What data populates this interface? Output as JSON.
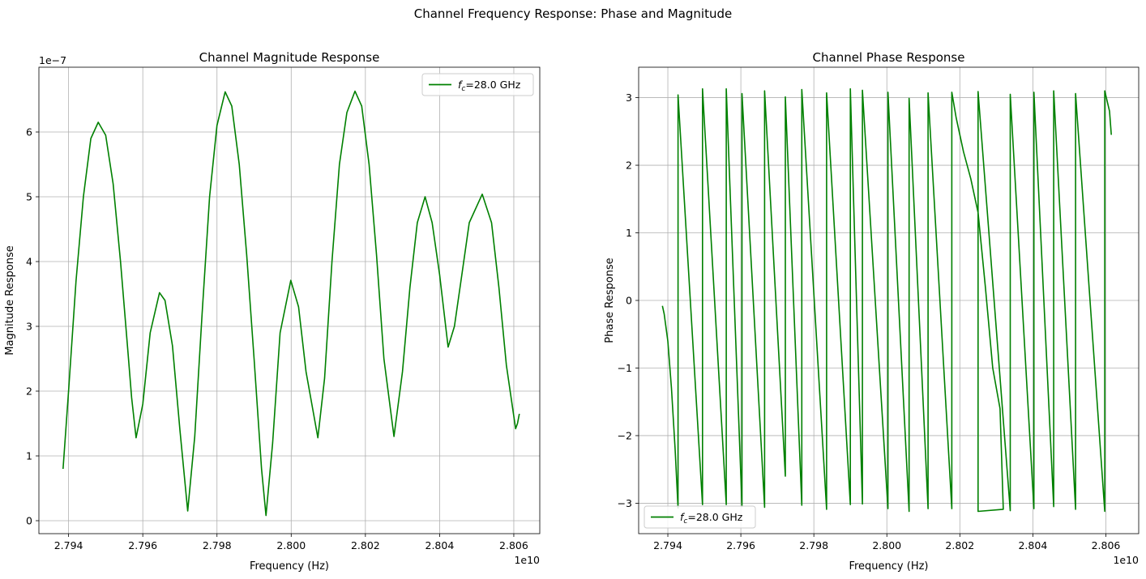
{
  "figure": {
    "title": "Channel Frequency Response: Phase and Magnitude"
  },
  "chart_data": [
    {
      "type": "line",
      "title": "Channel Magnitude Response",
      "xlabel": "Frequency (Hz)",
      "ylabel": "Magnitude Response",
      "x_offset_text": "1e10",
      "y_offset_text": "1e−7",
      "xlim": [
        2.7932,
        2.8067
      ],
      "ylim": [
        -0.2,
        7.0
      ],
      "x_ticks": [
        2.794,
        2.796,
        2.798,
        2.8,
        2.802,
        2.804,
        2.806
      ],
      "x_tick_labels": [
        "2.794",
        "2.796",
        "2.798",
        "2.800",
        "2.802",
        "2.804",
        "2.806"
      ],
      "y_ticks": [
        0,
        1,
        2,
        3,
        4,
        5,
        6
      ],
      "y_tick_labels": [
        "0",
        "1",
        "2",
        "3",
        "4",
        "5",
        "6"
      ],
      "grid": true,
      "legend_position": "upper right",
      "color": "#008000",
      "series": [
        {
          "label_prefix": "f",
          "label_subscript": "c",
          "label_suffix": "=28.0 GHz",
          "points": [
            [
              2.79385,
              0.8
            ],
            [
              2.794,
              2.0
            ],
            [
              2.7942,
              3.7
            ],
            [
              2.7944,
              5.0
            ],
            [
              2.7946,
              5.9
            ],
            [
              2.7948,
              6.15
            ],
            [
              2.795,
              5.95
            ],
            [
              2.7952,
              5.2
            ],
            [
              2.7954,
              4.0
            ],
            [
              2.7956,
              2.6
            ],
            [
              2.7957,
              1.9
            ],
            [
              2.79582,
              1.28
            ],
            [
              2.796,
              1.8
            ],
            [
              2.7962,
              2.9
            ],
            [
              2.79645,
              3.52
            ],
            [
              2.7966,
              3.4
            ],
            [
              2.7968,
              2.7
            ],
            [
              2.797,
              1.4
            ],
            [
              2.79721,
              0.15
            ],
            [
              2.7974,
              1.3
            ],
            [
              2.7976,
              3.2
            ],
            [
              2.7978,
              5.0
            ],
            [
              2.798,
              6.1
            ],
            [
              2.79822,
              6.62
            ],
            [
              2.7984,
              6.4
            ],
            [
              2.7986,
              5.5
            ],
            [
              2.7988,
              4.1
            ],
            [
              2.799,
              2.5
            ],
            [
              2.7992,
              0.8
            ],
            [
              2.79932,
              0.08
            ],
            [
              2.7995,
              1.2
            ],
            [
              2.7997,
              2.9
            ],
            [
              2.79999,
              3.71
            ],
            [
              2.8002,
              3.3
            ],
            [
              2.8004,
              2.3
            ],
            [
              2.80072,
              1.28
            ],
            [
              2.8009,
              2.2
            ],
            [
              2.8011,
              4.0
            ],
            [
              2.8013,
              5.5
            ],
            [
              2.8015,
              6.3
            ],
            [
              2.80172,
              6.63
            ],
            [
              2.8019,
              6.4
            ],
            [
              2.8021,
              5.5
            ],
            [
              2.8023,
              4.1
            ],
            [
              2.8025,
              2.5
            ],
            [
              2.80277,
              1.3
            ],
            [
              2.803,
              2.3
            ],
            [
              2.8032,
              3.6
            ],
            [
              2.8034,
              4.6
            ],
            [
              2.80361,
              5.0
            ],
            [
              2.8038,
              4.6
            ],
            [
              2.804,
              3.8
            ],
            [
              2.80423,
              2.68
            ],
            [
              2.8044,
              3.0
            ],
            [
              2.8046,
              3.8
            ],
            [
              2.8048,
              4.6
            ],
            [
              2.80515,
              5.04
            ],
            [
              2.8054,
              4.6
            ],
            [
              2.8056,
              3.6
            ],
            [
              2.8058,
              2.4
            ],
            [
              2.80605,
              1.42
            ],
            [
              2.8061,
              1.5
            ],
            [
              2.80615,
              1.65
            ]
          ]
        }
      ]
    },
    {
      "type": "line",
      "title": "Channel Phase Response",
      "xlabel": "Frequency (Hz)",
      "ylabel": "Phase Response",
      "x_offset_text": "1e10",
      "xlim": [
        2.7932,
        2.8069
      ],
      "ylim": [
        -3.45,
        3.45
      ],
      "x_ticks": [
        2.794,
        2.796,
        2.798,
        2.8,
        2.802,
        2.804,
        2.806
      ],
      "x_tick_labels": [
        "2.794",
        "2.796",
        "2.798",
        "2.800",
        "2.802",
        "2.804",
        "2.806"
      ],
      "y_ticks": [
        -3,
        -2,
        -1,
        0,
        1,
        2,
        3
      ],
      "y_tick_labels": [
        "−3",
        "−2",
        "−1",
        "0",
        "1",
        "2",
        "3"
      ],
      "grid": true,
      "legend_position": "lower left",
      "color": "#008000",
      "series": [
        {
          "label_prefix": "f",
          "label_subscript": "c",
          "label_suffix": "=28.0 GHz",
          "points": [
            [
              2.79385,
              -0.08
            ],
            [
              2.7939,
              -0.2
            ],
            [
              2.794,
              -0.6
            ],
            [
              2.7941,
              -1.3
            ],
            [
              2.7942,
              -2.2
            ],
            [
              2.79428,
              -3.07
            ],
            [
              2.79428,
              3.04
            ],
            [
              2.79495,
              -3.02
            ],
            [
              2.79495,
              3.13
            ],
            [
              2.7956,
              -3.02
            ],
            [
              2.7956,
              3.13
            ],
            [
              2.79603,
              -3.05
            ],
            [
              2.79603,
              3.06
            ],
            [
              2.79665,
              -3.06
            ],
            [
              2.79665,
              3.1
            ],
            [
              2.79722,
              -2.6
            ],
            [
              2.79722,
              3.01
            ],
            [
              2.79767,
              -3.03
            ],
            [
              2.79767,
              3.12
            ],
            [
              2.79835,
              -3.09
            ],
            [
              2.79835,
              3.07
            ],
            [
              2.799,
              -3.02
            ],
            [
              2.799,
              3.13
            ],
            [
              2.79933,
              -3.01
            ],
            [
              2.79933,
              3.11
            ],
            [
              2.80003,
              -3.08
            ],
            [
              2.80003,
              3.08
            ],
            [
              2.80061,
              -3.12
            ],
            [
              2.80061,
              2.99
            ],
            [
              2.80113,
              -3.08
            ],
            [
              2.80113,
              3.07
            ],
            [
              2.80178,
              -3.08
            ],
            [
              2.80178,
              3.08
            ],
            [
              2.8019,
              2.7
            ],
            [
              2.8021,
              2.2
            ],
            [
              2.8023,
              1.8
            ],
            [
              2.8025,
              1.3
            ],
            [
              2.8027,
              0.2
            ],
            [
              2.8029,
              -1.0
            ],
            [
              2.8031,
              -1.6
            ],
            [
              2.80319,
              -3.09
            ],
            [
              2.8025,
              -3.12
            ],
            [
              2.8025,
              3.09
            ],
            [
              2.80338,
              -3.11
            ],
            [
              2.80338,
              3.05
            ],
            [
              2.80403,
              -3.08
            ],
            [
              2.80403,
              3.08
            ],
            [
              2.80457,
              -3.05
            ],
            [
              2.80457,
              3.1
            ],
            [
              2.80517,
              -3.09
            ],
            [
              2.80517,
              3.06
            ],
            [
              2.80597,
              -3.12
            ],
            [
              2.80597,
              3.1
            ],
            [
              2.8061,
              2.8
            ],
            [
              2.80615,
              2.45
            ]
          ]
        }
      ]
    }
  ]
}
